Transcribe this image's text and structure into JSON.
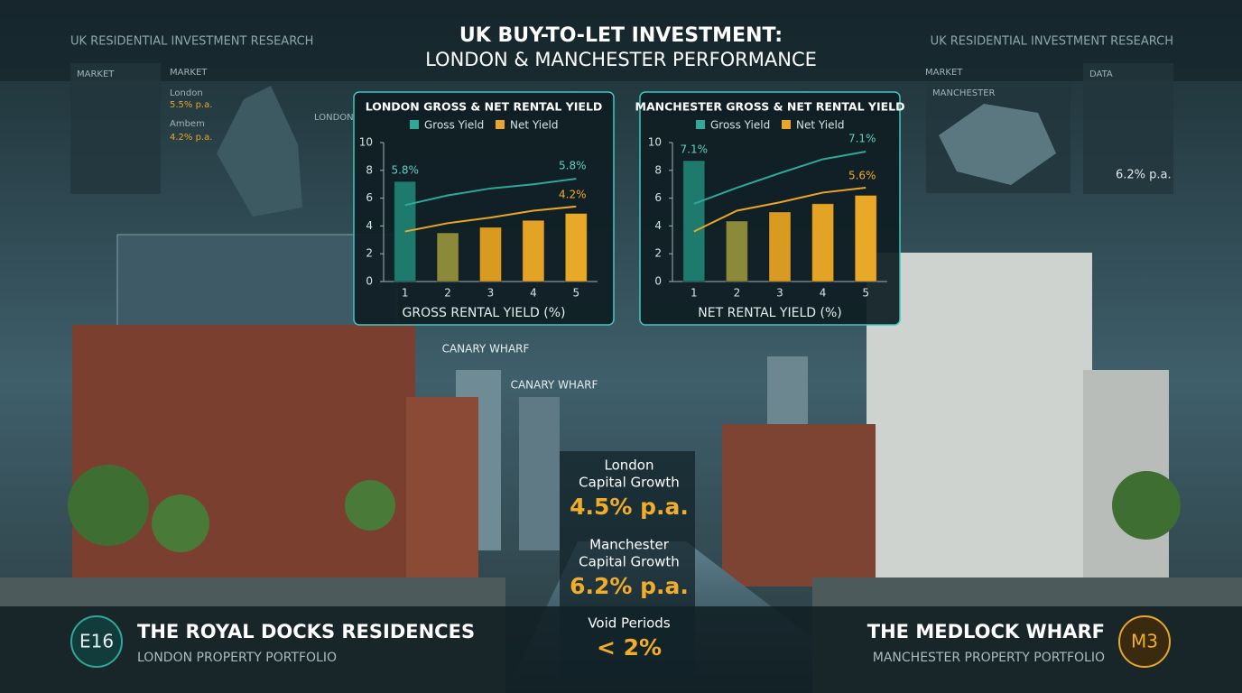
{
  "header": {
    "title": "UK BUY-TO-LET INVESTMENT:",
    "subtitle": "LONDON & MANCHESTER PERFORMANCE"
  },
  "left_panel": {
    "heading": "UK RESIDENTIAL INVESTMENT RESEARCH",
    "market_labels": [
      "MARKET",
      "MARKET"
    ],
    "rows": [
      {
        "label": "London",
        "value": "5.5% p.a."
      },
      {
        "label": "Ambem",
        "value": "4.2% p.a."
      }
    ],
    "map_label": "LONDON"
  },
  "right_panel": {
    "heading": "UK RESIDENTIAL INVESTMENT RESEARCH",
    "market_label": "MARKET",
    "map_label": "MANCHESTER",
    "data_label": "DATA",
    "stat": "6.2% p.a."
  },
  "scene_labels": [
    "CANARY WHARF",
    "CANARY WHARF"
  ],
  "stats": [
    {
      "label_lines": [
        "London",
        "Capital Growth"
      ],
      "value": "4.5% p.a."
    },
    {
      "label_lines": [
        "Manchester",
        "Capital Growth"
      ],
      "value": "6.2% p.a."
    },
    {
      "label_lines": [
        "Void Periods"
      ],
      "value": "< 2%"
    }
  ],
  "footer": {
    "left": {
      "badge": "E16",
      "name": "THE ROYAL DOCKS RESIDENCES",
      "subtitle": "LONDON PROPERTY PORTFOLIO"
    },
    "right": {
      "badge": "M3",
      "name": "THE MEDLOCK WHARF",
      "subtitle": "MANCHESTER PROPERTY PORTFOLIO"
    }
  },
  "chart_data": [
    {
      "type": "combo",
      "title": "LONDON GROSS & NET RENTAL YIELD",
      "categories": [
        "1",
        "2",
        "3",
        "4",
        "5"
      ],
      "bar_values": [
        7.2,
        3.5,
        3.9,
        4.4,
        4.9
      ],
      "bar_colors": [
        "#1d7a6c",
        "#8a8a3a",
        "#d99a22",
        "#e3a325",
        "#e8a828"
      ],
      "series": [
        {
          "name": "Gross Yield",
          "color": "#2fa898",
          "values": [
            5.5,
            6.2,
            6.7,
            7.0,
            7.4
          ]
        },
        {
          "name": "Net Yield",
          "color": "#e9a628",
          "values": [
            3.6,
            4.2,
            4.6,
            5.1,
            5.4
          ]
        }
      ],
      "annotations": [
        "5.8%",
        "5.8%",
        "4.2%"
      ],
      "xlabel": "GROSS RENTAL YIELD (%)",
      "ylim": [
        0,
        10
      ],
      "yticks": [
        0,
        2,
        4,
        6,
        8,
        10
      ]
    },
    {
      "type": "combo",
      "title": "MANCHESTER GROSS & NET RENTAL YIELD",
      "categories": [
        "1",
        "2",
        "3",
        "4",
        "5"
      ],
      "bar_values": [
        8.7,
        4.35,
        5.0,
        5.6,
        6.2
      ],
      "bar_colors": [
        "#1d7a6c",
        "#8a8a3a",
        "#d99a22",
        "#e3a325",
        "#e8a828"
      ],
      "series": [
        {
          "name": "Gross Yield",
          "color": "#2fa898",
          "values": [
            5.6,
            6.75,
            7.8,
            8.8,
            9.35
          ]
        },
        {
          "name": "Net Yield",
          "color": "#e9a628",
          "values": [
            3.6,
            5.1,
            5.7,
            6.4,
            6.75
          ]
        }
      ],
      "annotations": [
        "7.1%",
        "7.1%",
        "5.6%"
      ],
      "xlabel": "NET RENTAL YIELD (%)",
      "ylim": [
        0,
        10
      ],
      "yticks": [
        0,
        2,
        4,
        6,
        8,
        10
      ]
    }
  ]
}
